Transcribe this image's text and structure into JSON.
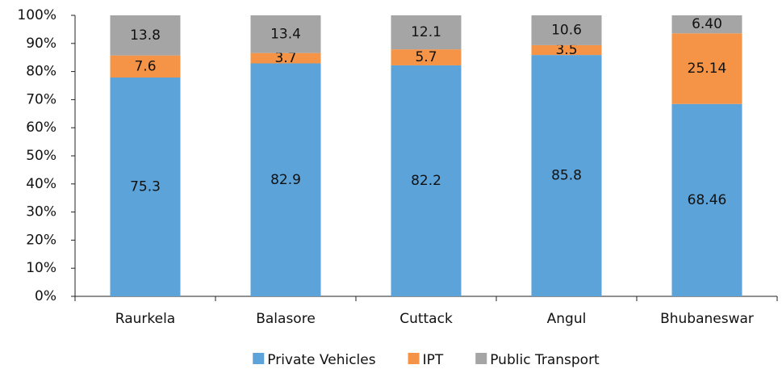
{
  "chart_data": {
    "type": "bar",
    "stacked": "percent",
    "categories": [
      "Raurkela",
      "Balasore",
      "Cuttack",
      "Angul",
      "Bhubaneswar"
    ],
    "series": [
      {
        "name": "Private Vehicles",
        "color": "#5ba3d9",
        "values": [
          75.3,
          82.9,
          82.2,
          85.8,
          68.46
        ]
      },
      {
        "name": "IPT",
        "color": "#f59446",
        "values": [
          7.6,
          3.7,
          5.7,
          3.5,
          25.14
        ]
      },
      {
        "name": "Public Transport",
        "color": "#a5a5a5",
        "values": [
          13.8,
          13.4,
          12.1,
          10.6,
          6.4
        ],
        "value_labels": [
          "13.8",
          "13.4",
          "12.1",
          "10.6",
          "6.40"
        ]
      }
    ],
    "ylim": [
      0,
      100
    ],
    "yticks": [
      {
        "value": 0,
        "label": "0%"
      },
      {
        "value": 10,
        "label": "10%"
      },
      {
        "value": 20,
        "label": "20%"
      },
      {
        "value": 30,
        "label": "30%"
      },
      {
        "value": 40,
        "label": "40%"
      },
      {
        "value": 50,
        "label": "50%"
      },
      {
        "value": 60,
        "label": "60%"
      },
      {
        "value": 70,
        "label": "70%"
      },
      {
        "value": 80,
        "label": "80%"
      },
      {
        "value": 90,
        "label": "90%"
      },
      {
        "value": 100,
        "label": "100%"
      }
    ],
    "legend": "bottom"
  }
}
